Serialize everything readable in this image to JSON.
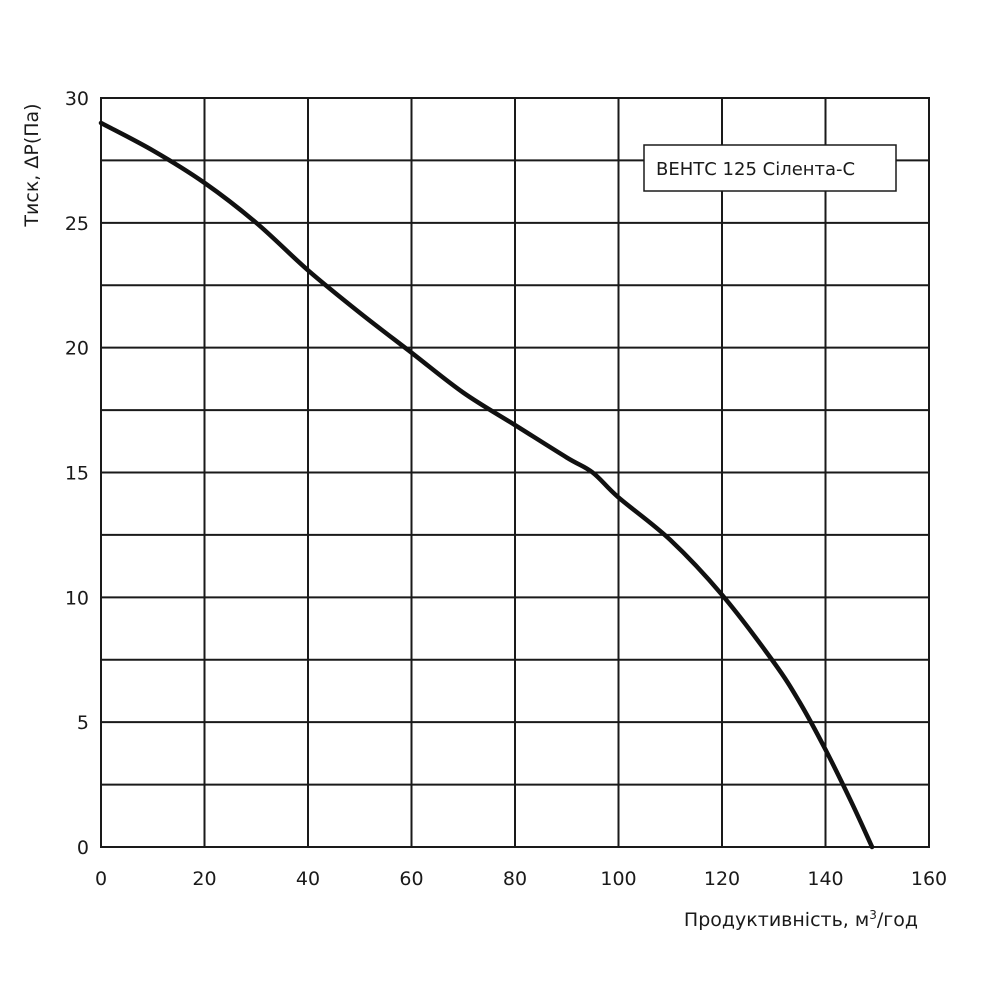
{
  "chart_data": {
    "type": "line",
    "title": "",
    "xlabel": "Продуктивність, м",
    "xlabel_sup": "3",
    "xlabel_suffix": "/год",
    "ylabel": "Тиск, ΔP(Па)",
    "xlim": [
      0,
      160
    ],
    "ylim": [
      0,
      30
    ],
    "x_ticks": [
      "0",
      "20",
      "40",
      "60",
      "80",
      "100",
      "120",
      "140",
      "160"
    ],
    "y_ticks": [
      "0",
      "5",
      "10",
      "15",
      "20",
      "25",
      "30"
    ],
    "grid": true,
    "legend_position": "top-right",
    "series": [
      {
        "name": "ВЕНТС 125 Сілента-С",
        "color": "#111111",
        "points": [
          [
            0,
            29
          ],
          [
            10,
            27.9
          ],
          [
            20,
            26.6
          ],
          [
            30,
            25.0
          ],
          [
            40,
            23.1
          ],
          [
            50,
            21.4
          ],
          [
            60,
            19.8
          ],
          [
            70,
            18.2
          ],
          [
            80,
            16.9
          ],
          [
            90,
            15.6
          ],
          [
            95,
            15.0
          ],
          [
            100,
            14.0
          ],
          [
            110,
            12.3
          ],
          [
            120,
            10.1
          ],
          [
            130,
            7.4
          ],
          [
            135,
            5.8
          ],
          [
            140,
            3.9
          ],
          [
            145,
            1.8
          ],
          [
            149,
            0
          ]
        ]
      }
    ]
  }
}
